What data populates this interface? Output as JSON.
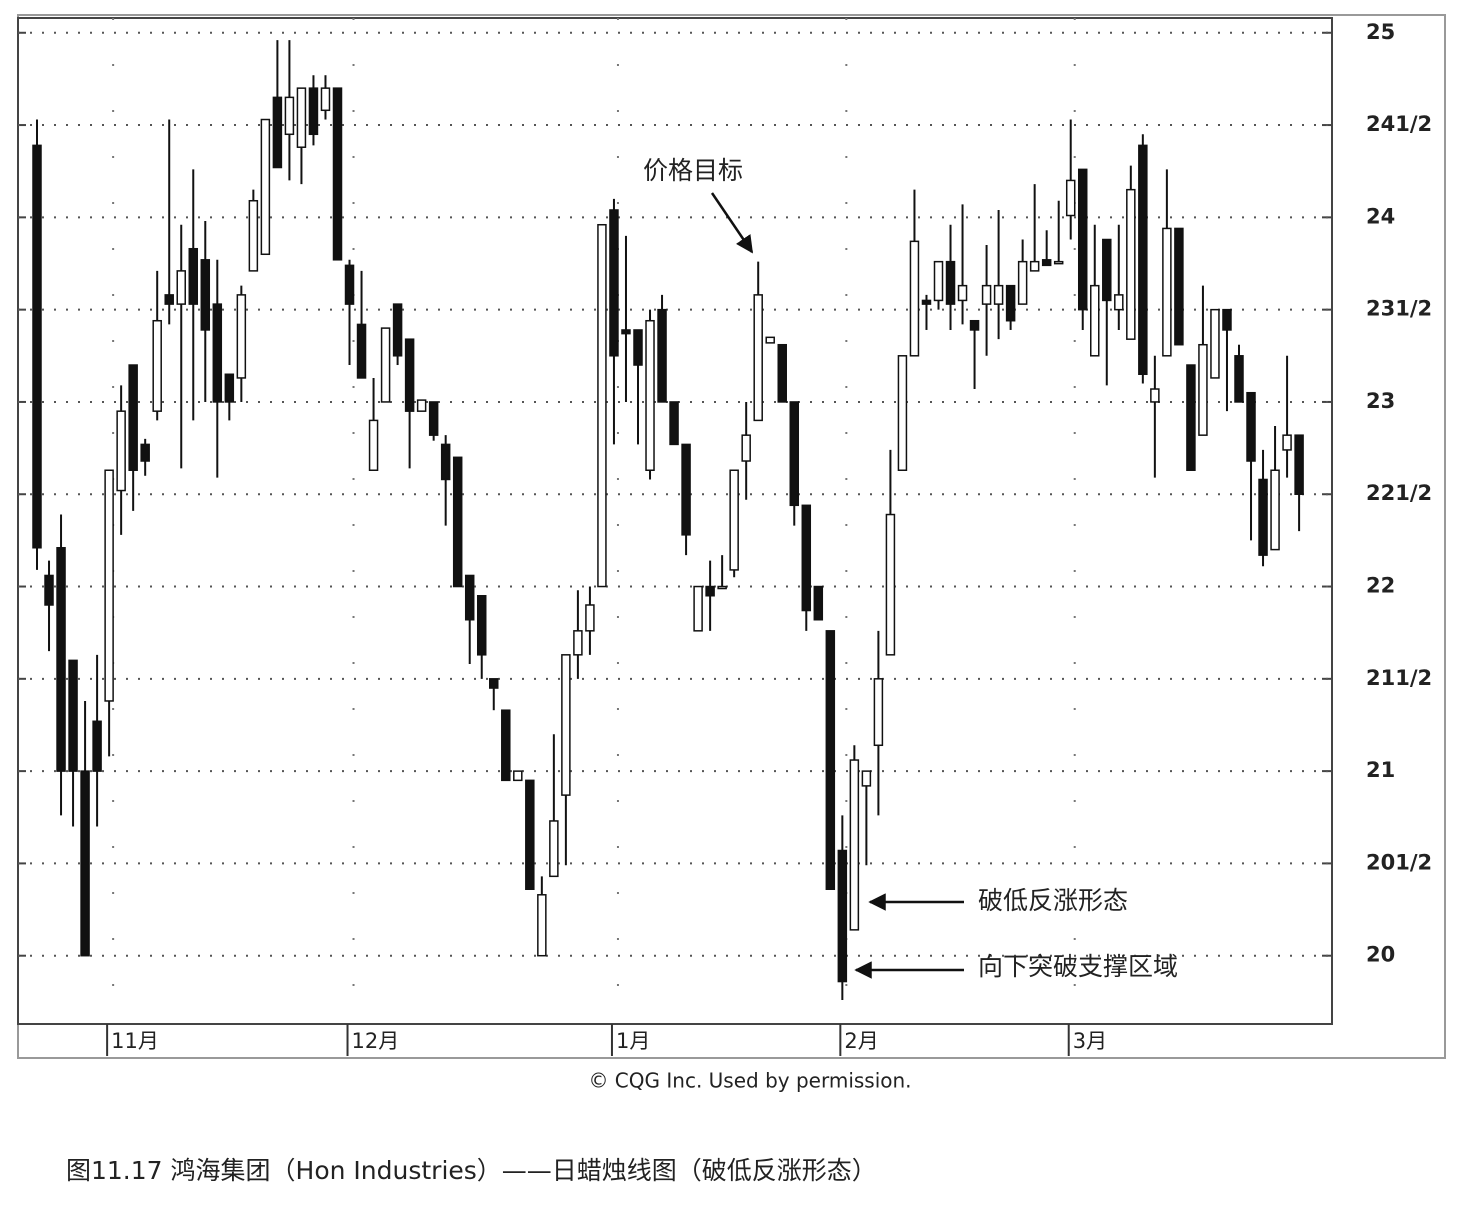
{
  "chart_data": {
    "type": "candlestick",
    "categories": [
      null,
      null,
      null,
      null,
      null,
      null,
      "11月",
      null,
      null,
      null,
      null,
      null,
      null,
      null,
      null,
      null,
      null,
      null,
      null,
      null,
      null,
      null,
      null,
      null,
      null,
      null,
      "12月",
      null,
      null,
      null,
      null,
      null,
      null,
      null,
      null,
      null,
      null,
      null,
      null,
      null,
      null,
      null,
      null,
      null,
      null,
      null,
      null,
      null,
      "1月",
      null,
      null,
      null,
      null,
      null,
      null,
      null,
      null,
      null,
      null,
      null,
      null,
      null,
      null,
      null,
      null,
      null,
      null,
      "2月",
      null,
      null,
      null,
      null,
      null,
      null,
      null,
      null,
      null,
      null,
      null,
      null,
      null,
      null,
      null,
      null,
      null,
      null,
      "3月",
      null,
      null,
      null,
      null,
      null,
      null,
      null,
      null,
      null,
      null,
      null,
      null,
      null,
      null,
      null,
      null,
      null,
      null,
      null
    ],
    "open": [
      24.39,
      22.06,
      22.21,
      21.6,
      21.0,
      21.27,
      21.38,
      22.52,
      23.2,
      22.77,
      22.95,
      23.58,
      23.53,
      23.83,
      23.77,
      23.53,
      23.15,
      23.13,
      23.71,
      23.8,
      24.65,
      24.45,
      24.38,
      24.7,
      24.58,
      24.7,
      23.74,
      23.42,
      22.63,
      23.0,
      23.53,
      23.34,
      22.95,
      23.0,
      22.77,
      22.7,
      22.06,
      21.95,
      21.5,
      21.33,
      20.95,
      20.95,
      20.0,
      20.43,
      20.87,
      21.63,
      21.76,
      22.0,
      24.04,
      23.39,
      23.39,
      22.63,
      23.5,
      23.0,
      22.77,
      21.76,
      22.0,
      21.99,
      22.09,
      22.68,
      22.9,
      23.32,
      23.31,
      23.0,
      22.44,
      22.0,
      21.76,
      20.57,
      20.14,
      20.92,
      21.14,
      21.63,
      22.63,
      23.25,
      23.55,
      23.55,
      23.76,
      23.55,
      23.44,
      23.53,
      23.53,
      23.63,
      23.53,
      23.71,
      23.77,
      23.75,
      24.01,
      24.26,
      23.25,
      23.88,
      23.5,
      23.34,
      24.39,
      23.0,
      23.25,
      23.94,
      23.2,
      22.82,
      23.13,
      23.5,
      23.25,
      23.05,
      22.58,
      22.2,
      22.74,
      22.82
    ],
    "high": [
      24.53,
      22.14,
      22.39,
      21.6,
      21.38,
      21.63,
      22.63,
      23.09,
      23.2,
      22.8,
      23.71,
      24.53,
      23.96,
      24.26,
      23.98,
      23.77,
      23.15,
      23.63,
      24.15,
      24.53,
      24.96,
      24.96,
      24.7,
      24.77,
      24.77,
      24.7,
      23.77,
      23.71,
      23.13,
      23.4,
      23.53,
      23.34,
      23.01,
      23.0,
      22.82,
      22.7,
      22.06,
      21.95,
      21.5,
      21.33,
      21.0,
      20.95,
      20.43,
      21.2,
      21.63,
      21.98,
      22.0,
      23.96,
      24.1,
      23.9,
      23.39,
      23.5,
      23.58,
      23.0,
      22.77,
      22.0,
      22.14,
      22.17,
      22.63,
      23.0,
      23.76,
      23.35,
      23.31,
      23.0,
      22.44,
      22.0,
      21.76,
      20.76,
      21.14,
      21.0,
      21.76,
      22.74,
      23.25,
      24.15,
      23.58,
      23.76,
      23.96,
      24.07,
      23.44,
      23.85,
      24.04,
      23.63,
      23.88,
      24.18,
      23.93,
      24.09,
      24.53,
      24.26,
      23.96,
      23.88,
      23.96,
      24.28,
      24.45,
      23.25,
      24.26,
      23.94,
      23.2,
      23.63,
      23.5,
      23.5,
      23.31,
      23.05,
      22.74,
      22.87,
      23.25,
      22.82
    ],
    "low": [
      22.09,
      21.65,
      20.76,
      20.7,
      20.0,
      20.7,
      21.08,
      22.28,
      22.41,
      22.6,
      22.9,
      23.42,
      22.64,
      22.9,
      23.0,
      22.59,
      22.9,
      23.0,
      23.71,
      23.8,
      24.27,
      24.2,
      24.18,
      24.39,
      24.53,
      23.77,
      23.2,
      23.13,
      22.63,
      23.0,
      23.2,
      22.64,
      22.95,
      22.79,
      22.33,
      22.0,
      21.58,
      21.5,
      21.33,
      20.95,
      20.95,
      20.36,
      20.0,
      20.43,
      20.49,
      21.5,
      21.63,
      22.0,
      22.77,
      23.0,
      22.77,
      22.58,
      23.0,
      22.77,
      22.17,
      21.76,
      21.76,
      21.99,
      22.05,
      22.47,
      22.9,
      23.32,
      23.0,
      22.33,
      21.76,
      21.82,
      20.36,
      19.76,
      20.14,
      20.49,
      20.76,
      21.63,
      22.63,
      23.25,
      23.39,
      23.5,
      23.39,
      23.42,
      23.07,
      23.25,
      23.34,
      23.39,
      23.53,
      23.71,
      23.74,
      23.75,
      23.88,
      23.39,
      23.25,
      23.09,
      23.39,
      23.34,
      23.1,
      22.59,
      23.25,
      23.31,
      22.63,
      22.82,
      23.13,
      22.95,
      23.0,
      22.25,
      22.11,
      22.2,
      22.59,
      22.3
    ],
    "close": [
      22.21,
      21.9,
      21.0,
      21.0,
      20.0,
      21.0,
      22.63,
      22.95,
      22.63,
      22.68,
      23.44,
      23.53,
      23.71,
      23.53,
      23.39,
      23.0,
      23.0,
      23.58,
      24.09,
      24.53,
      24.27,
      24.65,
      24.7,
      24.45,
      24.7,
      23.77,
      23.53,
      23.13,
      22.9,
      23.4,
      23.25,
      22.95,
      23.01,
      22.82,
      22.58,
      22.0,
      21.82,
      21.63,
      21.45,
      20.95,
      21.0,
      20.36,
      20.33,
      20.73,
      21.63,
      21.76,
      21.9,
      23.96,
      23.25,
      23.37,
      23.2,
      23.44,
      23.0,
      22.77,
      22.28,
      22.0,
      21.95,
      22.0,
      22.63,
      22.82,
      23.58,
      23.35,
      23.0,
      22.44,
      21.87,
      21.82,
      20.36,
      19.86,
      21.06,
      21.0,
      21.5,
      22.39,
      23.25,
      23.87,
      23.53,
      23.76,
      23.53,
      23.63,
      23.39,
      23.63,
      23.63,
      23.44,
      23.76,
      23.76,
      23.74,
      23.76,
      24.2,
      23.5,
      23.63,
      23.55,
      23.58,
      24.15,
      23.15,
      23.07,
      23.94,
      23.31,
      22.63,
      23.31,
      23.5,
      23.39,
      23.0,
      22.68,
      22.17,
      22.63,
      22.82,
      22.5
    ],
    "up_color": "#ffffff",
    "down_color": "#111111",
    "ylim": [
      19.63,
      25.08
    ],
    "yticks": [
      20,
      {
        "value": 20.5,
        "label": "201/2"
      },
      21,
      {
        "value": 21.5,
        "label": "211/2"
      },
      22,
      {
        "value": 22.5,
        "label": "221/2"
      },
      23,
      {
        "value": 23.5,
        "label": "231/2"
      },
      24,
      {
        "value": 24.5,
        "label": "241/2"
      },
      25
    ],
    "grid": true,
    "annotations": [
      "价格目标",
      "破低反涨形态",
      "向下突破支撑区域"
    ],
    "source": "© CQG Inc. Used by permission."
  },
  "caption": "图11.17 鸿海集团（Hon Industries）——日蜡烛线图（破低反涨形态）"
}
